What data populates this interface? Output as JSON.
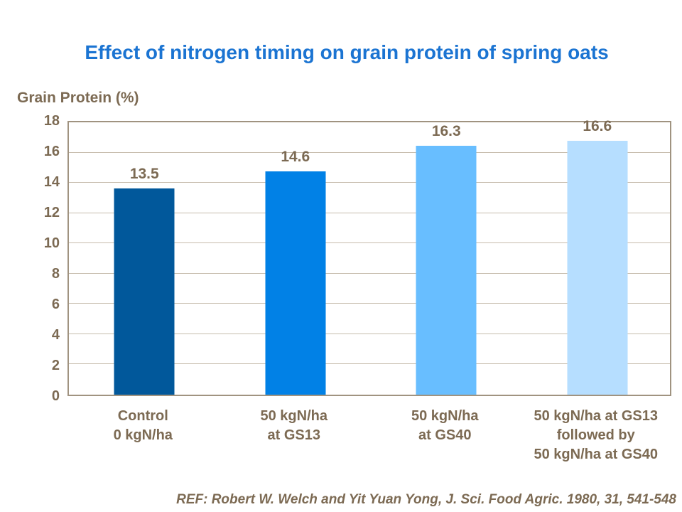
{
  "chart_data": {
    "type": "bar",
    "title": "Effect of nitrogen timing on grain protein of spring oats",
    "ylabel": "Grain Protein (%)",
    "xlabel": "",
    "categories": [
      "Control\n0 kgN/ha",
      "50 kgN/ha\nat GS13",
      "50 kgN/ha\nat GS40",
      "50 kgN/ha at GS13\nfollowed by\n50 kgN/ha at GS40"
    ],
    "values": [
      13.5,
      14.6,
      16.3,
      16.6
    ],
    "data_labels": [
      "13.5",
      "14.6",
      "16.3",
      "16.6"
    ],
    "bar_colors": [
      "#01589B",
      "#0181E6",
      "#68BEFF",
      "#B6DEFF"
    ],
    "ylim": [
      0,
      18
    ],
    "yticks": [
      0,
      2,
      4,
      6,
      8,
      10,
      12,
      14,
      16,
      18
    ],
    "grid": true,
    "legend": "none"
  },
  "reference": "REF: Robert W. Welch and Yit Yuan Yong, J. Sci. Food Agric. 1980, 31, 541-548",
  "colors": {
    "title_text": "#1B74D2",
    "axis_text": "#7C6A53",
    "gridline": "#C6BCAC",
    "plot_frame": "#A09380",
    "background": "#FFFFFF"
  }
}
